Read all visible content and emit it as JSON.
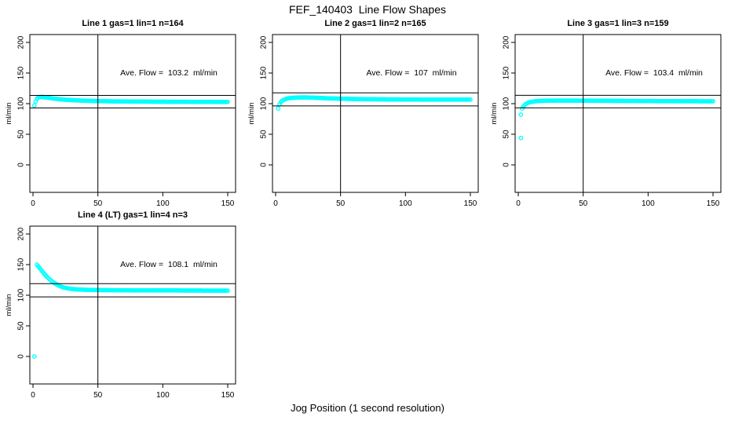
{
  "figure": {
    "title": "FEF_140403  Line Flow Shapes",
    "x_axis_label": "Jog Position (1 second resolution)",
    "y_axis_label": "ml/min",
    "point_color": "#00ffff",
    "line_color": "#000000",
    "background_color": "#ffffff"
  },
  "chart_data": [
    {
      "type": "scatter",
      "title": "Line 1 gas=1 lin=1 n=164",
      "annotation": "Ave. Flow =  103.2  ml/min",
      "ave_flow_ml_min": 103.2,
      "gas": 1,
      "lin": 1,
      "n": 164,
      "x_ticks": [
        0,
        50,
        100,
        150
      ],
      "y_ticks": [
        0,
        50,
        100,
        150,
        200
      ],
      "xlim": [
        0,
        155
      ],
      "ylim": [
        0,
        200
      ],
      "ylabel": "ml/min",
      "grid": false,
      "legend": false,
      "vline_x": 50,
      "ref_lines_y": [
        113.5,
        92.9
      ],
      "outlier_points": [],
      "curve_keypoints": [
        [
          1,
          97
        ],
        [
          2,
          103.5
        ],
        [
          3,
          108
        ],
        [
          4,
          110
        ],
        [
          5,
          110.8
        ],
        [
          7,
          111
        ],
        [
          9,
          110.5
        ],
        [
          12,
          109.5
        ],
        [
          16,
          108.3
        ],
        [
          20,
          107.3
        ],
        [
          25,
          106.4
        ],
        [
          30,
          105.7
        ],
        [
          36,
          105.1
        ],
        [
          43,
          104.6
        ],
        [
          50,
          104.2
        ],
        [
          60,
          103.8
        ],
        [
          75,
          103.5
        ],
        [
          95,
          103.2
        ],
        [
          120,
          103
        ],
        [
          150,
          102.8
        ]
      ]
    },
    {
      "type": "scatter",
      "title": "Line 2 gas=1 lin=2 n=165",
      "annotation": "Ave. Flow =  107  ml/min",
      "ave_flow_ml_min": 107,
      "gas": 1,
      "lin": 2,
      "n": 165,
      "x_ticks": [
        0,
        50,
        100,
        150
      ],
      "y_ticks": [
        0,
        50,
        100,
        150,
        200
      ],
      "xlim": [
        0,
        155
      ],
      "ylim": [
        0,
        200
      ],
      "ylabel": "ml/min",
      "grid": false,
      "legend": false,
      "vline_x": 50,
      "ref_lines_y": [
        117.7,
        96.3
      ],
      "outlier_points": [
        [
          2,
          92
        ]
      ],
      "curve_keypoints": [
        [
          3,
          99
        ],
        [
          4,
          102.5
        ],
        [
          5,
          104.5
        ],
        [
          6,
          106
        ],
        [
          8,
          107.8
        ],
        [
          10,
          108.8
        ],
        [
          13,
          109.5
        ],
        [
          17,
          110
        ],
        [
          22,
          110.2
        ],
        [
          28,
          109.8
        ],
        [
          35,
          109.2
        ],
        [
          42,
          108.6
        ],
        [
          50,
          108.1
        ],
        [
          60,
          107.6
        ],
        [
          72,
          107.2
        ],
        [
          90,
          106.9
        ],
        [
          115,
          106.7
        ],
        [
          150,
          106.6
        ]
      ]
    },
    {
      "type": "scatter",
      "title": "Line 3 gas=1 lin=3 n=159",
      "annotation": "Ave. Flow =  103.4  ml/min",
      "ave_flow_ml_min": 103.4,
      "gas": 1,
      "lin": 3,
      "n": 159,
      "x_ticks": [
        0,
        50,
        100,
        150
      ],
      "y_ticks": [
        0,
        50,
        100,
        150,
        200
      ],
      "xlim": [
        0,
        155
      ],
      "ylim": [
        0,
        200
      ],
      "ylabel": "ml/min",
      "grid": false,
      "legend": false,
      "vline_x": 50,
      "ref_lines_y": [
        113.7,
        93.1
      ],
      "outlier_points": [
        [
          2,
          44
        ],
        [
          2,
          82
        ]
      ],
      "curve_keypoints": [
        [
          3,
          92
        ],
        [
          4,
          95.5
        ],
        [
          5,
          98
        ],
        [
          6,
          99.8
        ],
        [
          8,
          101.8
        ],
        [
          10,
          102.9
        ],
        [
          13,
          103.8
        ],
        [
          17,
          104.4
        ],
        [
          22,
          104.8
        ],
        [
          30,
          105
        ],
        [
          40,
          105
        ],
        [
          55,
          104.8
        ],
        [
          75,
          104.5
        ],
        [
          100,
          104.2
        ],
        [
          130,
          104
        ],
        [
          150,
          103.8
        ]
      ]
    },
    {
      "type": "scatter",
      "title": "Line 4 (LT) gas=1 lin=4 n=3",
      "annotation": "Ave. Flow =  108.1  ml/min",
      "ave_flow_ml_min": 108.1,
      "gas": 1,
      "lin": 4,
      "n": 3,
      "x_ticks": [
        0,
        50,
        100,
        150
      ],
      "y_ticks": [
        0,
        50,
        100,
        150,
        200
      ],
      "xlim": [
        0,
        155
      ],
      "ylim": [
        0,
        200
      ],
      "ylabel": "ml/min",
      "grid": false,
      "legend": false,
      "vline_x": 50,
      "ref_lines_y": [
        118.9,
        97.3
      ],
      "outlier_points": [
        [
          1,
          0
        ]
      ],
      "curve_keypoints": [
        [
          3,
          150
        ],
        [
          4,
          147.5
        ],
        [
          5,
          144.8
        ],
        [
          6,
          142
        ],
        [
          7,
          139.3
        ],
        [
          8,
          136.7
        ],
        [
          9,
          134.2
        ],
        [
          10,
          131.8
        ],
        [
          12,
          127.5
        ],
        [
          14,
          123.8
        ],
        [
          16,
          120.6
        ],
        [
          18,
          117.9
        ],
        [
          20,
          115.7
        ],
        [
          22,
          113.9
        ],
        [
          24,
          112.5
        ],
        [
          27,
          111.1
        ],
        [
          30,
          110.2
        ],
        [
          34,
          109.5
        ],
        [
          39,
          109
        ],
        [
          45,
          108.6
        ],
        [
          52,
          108.4
        ],
        [
          62,
          108.2
        ],
        [
          75,
          108
        ],
        [
          95,
          107.9
        ],
        [
          120,
          107.7
        ],
        [
          150,
          107.5
        ]
      ]
    }
  ]
}
